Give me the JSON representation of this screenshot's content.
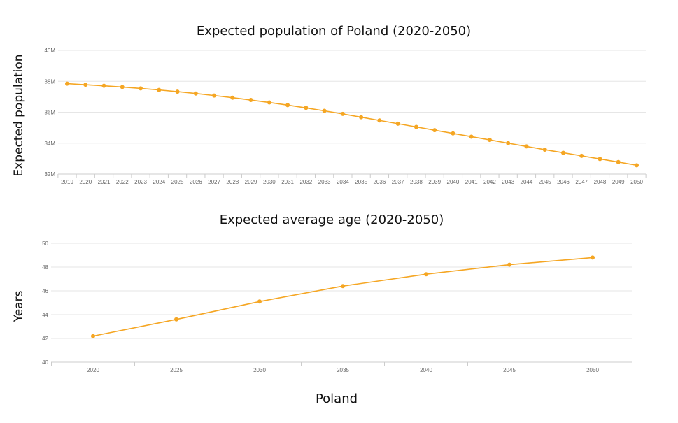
{
  "footer_label": "Poland",
  "colors": {
    "series": "#f5a623",
    "grid": "#e6e6e6"
  },
  "chart_data": [
    {
      "type": "line",
      "title": "Expected population of Poland (2020-2050)",
      "ylabel": "Expected population",
      "xlabel": "",
      "x": [
        2019,
        2020,
        2021,
        2022,
        2023,
        2024,
        2025,
        2026,
        2027,
        2028,
        2029,
        2030,
        2031,
        2032,
        2033,
        2034,
        2035,
        2036,
        2037,
        2038,
        2039,
        2040,
        2041,
        2042,
        2043,
        2044,
        2045,
        2046,
        2047,
        2048,
        2049,
        2050
      ],
      "x_tick_labels": [
        "2019",
        "2020",
        "2021",
        "2022",
        "2023",
        "2024",
        "2025",
        "2026",
        "2027",
        "2028",
        "2029",
        "2030",
        "2031",
        "2032",
        "2033",
        "2034",
        "2035",
        "2036",
        "2037",
        "2038",
        "2039",
        "2040",
        "2041",
        "2042",
        "2043",
        "2044",
        "2045",
        "2046",
        "2047",
        "2048",
        "2049",
        "2050"
      ],
      "values": [
        37.85,
        37.78,
        37.71,
        37.63,
        37.54,
        37.44,
        37.33,
        37.21,
        37.08,
        36.94,
        36.79,
        36.63,
        36.46,
        36.28,
        36.09,
        35.89,
        35.68,
        35.47,
        35.26,
        35.05,
        34.84,
        34.63,
        34.42,
        34.21,
        34.0,
        33.79,
        33.58,
        33.38,
        33.18,
        32.98,
        32.78,
        32.57
      ],
      "y_unit": "M",
      "ylim": [
        32,
        40
      ],
      "y_ticks": [
        32,
        34,
        36,
        38,
        40
      ],
      "y_tick_labels": [
        "32M",
        "34M",
        "36M",
        "38M",
        "40M"
      ],
      "grid": true,
      "legend": "none"
    },
    {
      "type": "line",
      "title": "Expected average age (2020-2050)",
      "ylabel": "Years",
      "xlabel": "",
      "x": [
        2020,
        2025,
        2030,
        2035,
        2040,
        2045,
        2050
      ],
      "x_tick_labels": [
        "2020",
        "2025",
        "2030",
        "2035",
        "2040",
        "2045",
        "2050"
      ],
      "values": [
        42.2,
        43.6,
        45.1,
        46.4,
        47.4,
        48.2,
        48.8
      ],
      "ylim": [
        40,
        50
      ],
      "y_ticks": [
        40,
        42,
        44,
        46,
        48,
        50
      ],
      "y_tick_labels": [
        "40",
        "42",
        "44",
        "46",
        "48",
        "50"
      ],
      "grid": true,
      "legend": "none"
    }
  ]
}
